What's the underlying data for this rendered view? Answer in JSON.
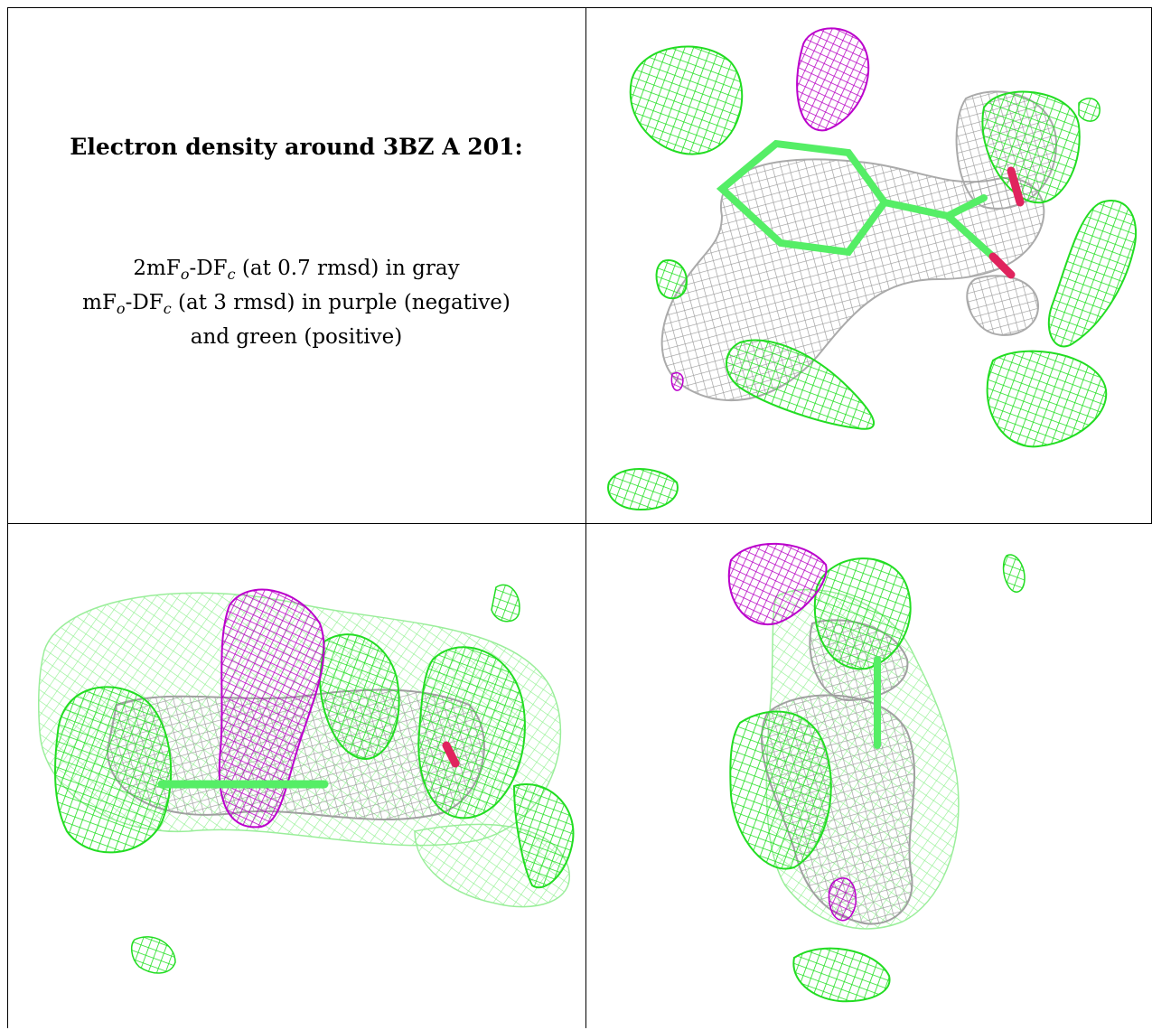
{
  "caption": {
    "title": "Electron density around 3BZ A 201:",
    "line1_pre": "2mF",
    "line1_sub1": "o",
    "line1_mid": "-DF",
    "line1_sub2": "c",
    "line1_post": " (at 0.7 rmsd) in gray",
    "line2_pre": "mF",
    "line2_sub1": "o",
    "line2_mid": "-DF",
    "line2_sub2": "c",
    "line2_post": " (at 3 rmsd) in purple (negative)",
    "line3": "and green (positive)"
  },
  "colors": {
    "gray_mesh": "#a9a9a9",
    "negative_mesh": "#c000c8",
    "positive_mesh": "#22e022",
    "oxygen": "#e0245e",
    "bond_green": "#55ee66"
  },
  "panels": [
    {
      "name": "view-top-right",
      "description_visible": ""
    },
    {
      "name": "view-bottom-left",
      "description_visible": ""
    },
    {
      "name": "view-bottom-right",
      "description_visible": ""
    }
  ]
}
